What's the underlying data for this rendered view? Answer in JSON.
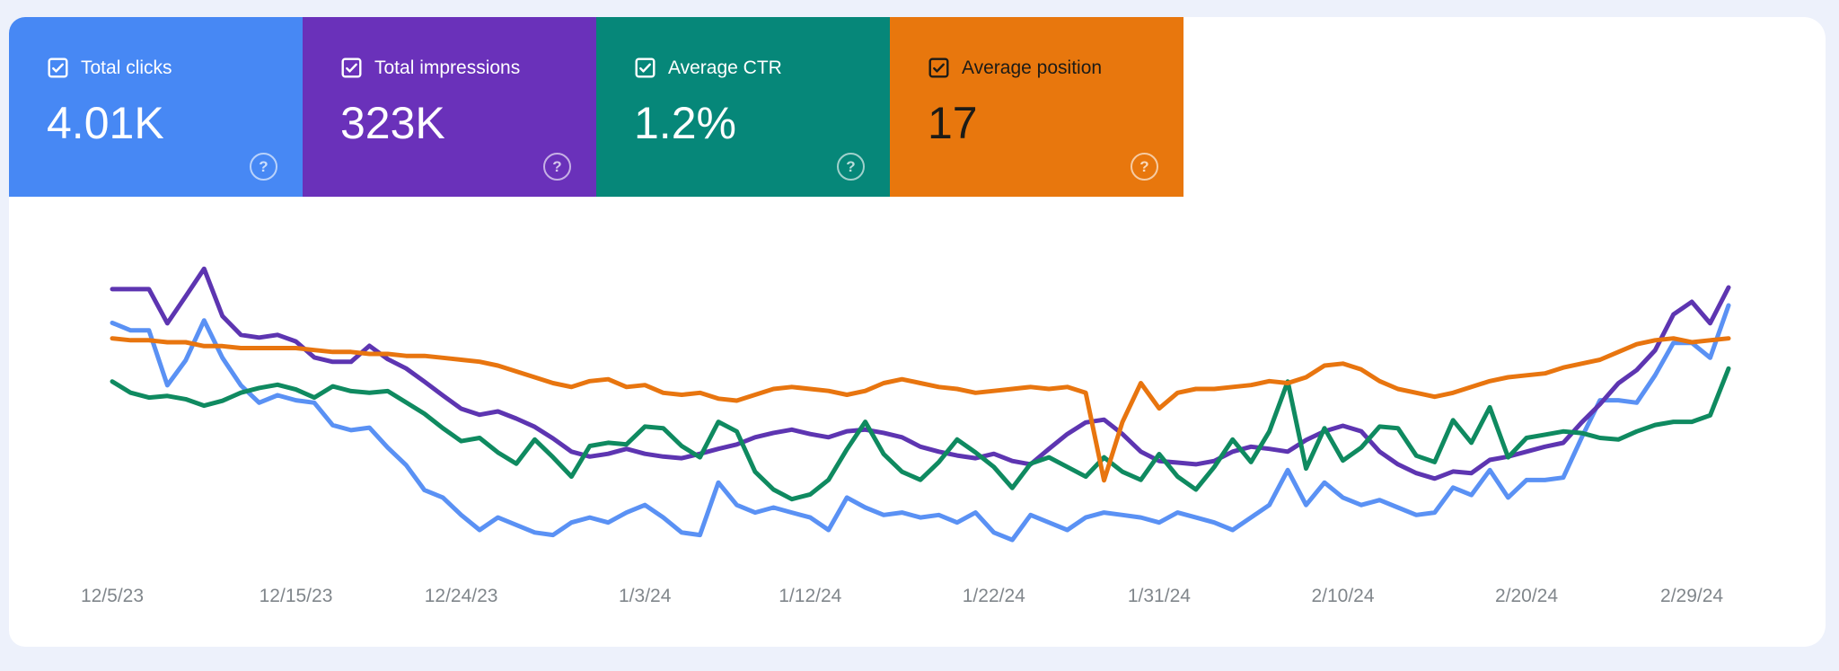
{
  "page": {
    "background": "#edf1fb",
    "panel_background": "#ffffff",
    "help_glyph": "?"
  },
  "cards": [
    {
      "label": "Total clicks",
      "value": "4.01K",
      "background": "#4788f4",
      "text_color": "#ffffff",
      "checkbox_checked": true
    },
    {
      "label": "Total impressions",
      "value": "323K",
      "background": "#6a31ba",
      "text_color": "#ffffff",
      "checkbox_checked": true
    },
    {
      "label": "Average CTR",
      "value": "1.2%",
      "background": "#068779",
      "text_color": "#ffffff",
      "checkbox_checked": true
    },
    {
      "label": "Average position",
      "value": "17",
      "background": "#e8770d",
      "text_color": "#1c1b17",
      "checkbox_checked": true
    }
  ],
  "chart_data": {
    "type": "line",
    "x_unit": "day",
    "date_range": {
      "start": "12/5/23",
      "end": "3/2/24"
    },
    "grid": "none",
    "legend": "none",
    "axis_label_color": "#80868b",
    "x_tick_labels": [
      {
        "label": "12/5/23",
        "day_index": 0
      },
      {
        "label": "12/15/23",
        "day_index": 10
      },
      {
        "label": "12/24/23",
        "day_index": 19
      },
      {
        "label": "1/3/24",
        "day_index": 29
      },
      {
        "label": "1/12/24",
        "day_index": 38
      },
      {
        "label": "1/22/24",
        "day_index": 48
      },
      {
        "label": "1/31/24",
        "day_index": 57
      },
      {
        "label": "2/10/24",
        "day_index": 67
      },
      {
        "label": "2/20/24",
        "day_index": 77
      },
      {
        "label": "2/29/24",
        "day_index": 86
      }
    ],
    "series": [
      {
        "name": "Clicks",
        "color": "#5a91f4",
        "axis_range": [
          13,
          130
        ],
        "inverted": false,
        "values": [
          105,
          102,
          102,
          80,
          90,
          106,
          91,
          80,
          73,
          76,
          74,
          73,
          64,
          62,
          63,
          55,
          48,
          38,
          35,
          28,
          22,
          27,
          24,
          21,
          20,
          25,
          27,
          25,
          29,
          32,
          27,
          21,
          20,
          41,
          32,
          29,
          31,
          29,
          27,
          22,
          35,
          31,
          28,
          29,
          27,
          28,
          25,
          29,
          21,
          18,
          28,
          25,
          22,
          27,
          29,
          28,
          27,
          25,
          29,
          27,
          25,
          22,
          27,
          32,
          46,
          32,
          41,
          35,
          32,
          34,
          31,
          28,
          29,
          39,
          36,
          46,
          35,
          42,
          42,
          43,
          59,
          74,
          74,
          73,
          84,
          97,
          97,
          91,
          112
        ]
      },
      {
        "name": "Impressions",
        "color": "#5d35b1",
        "axis_range": [
          1050,
          6350
        ],
        "inverted": false,
        "values": [
          5830,
          5830,
          5830,
          5210,
          5700,
          6200,
          5340,
          5000,
          4950,
          5000,
          4880,
          4590,
          4510,
          4510,
          4800,
          4560,
          4390,
          4150,
          3900,
          3660,
          3550,
          3610,
          3480,
          3330,
          3120,
          2880,
          2790,
          2840,
          2930,
          2840,
          2790,
          2760,
          2840,
          2930,
          3010,
          3140,
          3220,
          3280,
          3200,
          3140,
          3250,
          3280,
          3220,
          3140,
          2970,
          2880,
          2810,
          2760,
          2840,
          2710,
          2650,
          2930,
          3200,
          3410,
          3460,
          3200,
          2880,
          2710,
          2680,
          2650,
          2710,
          2880,
          2970,
          2930,
          2880,
          3090,
          3250,
          3350,
          3250,
          2880,
          2650,
          2490,
          2390,
          2520,
          2490,
          2730,
          2790,
          2880,
          2970,
          3040,
          3410,
          3740,
          4120,
          4360,
          4720,
          5370,
          5600,
          5210,
          5860
        ]
      },
      {
        "name": "CTR (%)",
        "color": "#0f8a60",
        "axis_range": [
          0.53,
          2.34
        ],
        "inverted": false,
        "values": [
          1.59,
          1.52,
          1.49,
          1.5,
          1.48,
          1.44,
          1.47,
          1.52,
          1.55,
          1.57,
          1.54,
          1.49,
          1.56,
          1.53,
          1.52,
          1.53,
          1.46,
          1.39,
          1.3,
          1.22,
          1.24,
          1.15,
          1.08,
          1.23,
          1.12,
          1.0,
          1.19,
          1.21,
          1.2,
          1.31,
          1.3,
          1.19,
          1.12,
          1.34,
          1.28,
          1.03,
          0.92,
          0.86,
          0.89,
          0.98,
          1.17,
          1.34,
          1.14,
          1.03,
          0.98,
          1.09,
          1.23,
          1.15,
          1.06,
          0.93,
          1.08,
          1.12,
          1.06,
          1.0,
          1.12,
          1.03,
          0.98,
          1.14,
          1.0,
          0.92,
          1.06,
          1.23,
          1.09,
          1.28,
          1.59,
          1.05,
          1.3,
          1.1,
          1.18,
          1.31,
          1.3,
          1.13,
          1.09,
          1.35,
          1.21,
          1.43,
          1.12,
          1.24,
          1.26,
          1.28,
          1.27,
          1.24,
          1.23,
          1.28,
          1.32,
          1.34,
          1.34,
          1.38,
          1.67
        ]
      },
      {
        "name": "Position",
        "color": "#e8750f",
        "axis_range": [
          10.6,
          25.6
        ],
        "inverted": true,
        "values": [
          14.6,
          14.7,
          14.7,
          14.8,
          14.8,
          15.0,
          15.0,
          15.1,
          15.1,
          15.1,
          15.1,
          15.2,
          15.3,
          15.3,
          15.4,
          15.4,
          15.5,
          15.5,
          15.6,
          15.7,
          15.8,
          16.0,
          16.3,
          16.6,
          16.9,
          17.1,
          16.8,
          16.7,
          17.1,
          17.0,
          17.4,
          17.5,
          17.4,
          17.7,
          17.8,
          17.5,
          17.2,
          17.1,
          17.2,
          17.3,
          17.5,
          17.3,
          16.9,
          16.7,
          16.9,
          17.1,
          17.2,
          17.4,
          17.3,
          17.2,
          17.1,
          17.2,
          17.1,
          17.4,
          21.9,
          18.9,
          16.9,
          18.2,
          17.4,
          17.2,
          17.2,
          17.1,
          17.0,
          16.8,
          16.9,
          16.6,
          16.0,
          15.9,
          16.2,
          16.8,
          17.2,
          17.4,
          17.6,
          17.4,
          17.1,
          16.8,
          16.6,
          16.5,
          16.4,
          16.1,
          15.9,
          15.7,
          15.3,
          14.9,
          14.7,
          14.6,
          14.8,
          14.7,
          14.6
        ]
      }
    ]
  }
}
